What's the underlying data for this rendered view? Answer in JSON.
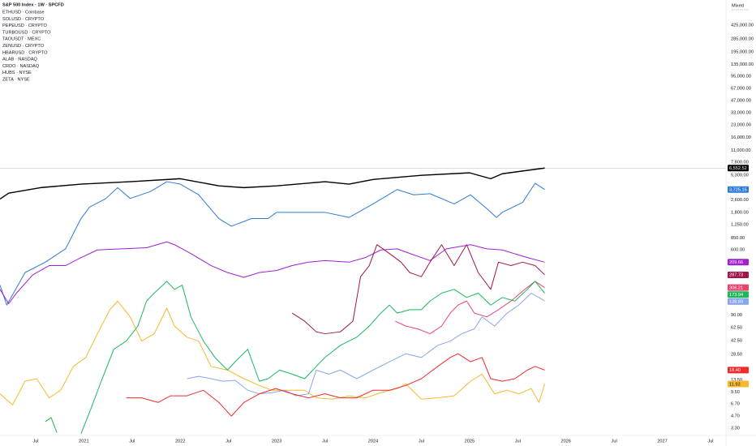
{
  "chart_data": {
    "type": "line",
    "title": "S&P 500 Index · 1W · SPCFD",
    "currency_label": "Mixed",
    "log_scale": true,
    "grid": false,
    "xlim": [
      2020.13,
      2027.66
    ],
    "ylim": [
      2.67,
      884600
    ],
    "xticks": [
      {
        "value": 2020.5,
        "label": "Jul"
      },
      2021,
      {
        "value": 2021.5,
        "label": "Jul"
      },
      2022,
      {
        "value": 2022.5,
        "label": "Jul"
      },
      2023,
      {
        "value": 2023.5,
        "label": "Jul"
      },
      2024,
      {
        "value": 2024.5,
        "label": "Jul"
      },
      2025,
      {
        "value": 2025.5,
        "label": "Jul"
      },
      2026,
      {
        "value": 2026.5,
        "label": "Jul"
      },
      2027,
      {
        "value": 2027.5,
        "label": "Jul"
      }
    ],
    "yticks": [
      {
        "value": 425000,
        "label": "425,000.00"
      },
      {
        "value": 285000,
        "label": "285,000.00"
      },
      {
        "value": 195000,
        "label": "195,000.00"
      },
      {
        "value": 135000,
        "label": "135,000.00"
      },
      {
        "value": 95000,
        "label": "95,000.00"
      },
      {
        "value": 67000,
        "label": "67,000.00"
      },
      {
        "value": 47000,
        "label": "47,000.00"
      },
      {
        "value": 33000,
        "label": "33,000.00"
      },
      {
        "value": 23000,
        "label": "23,000.00"
      },
      {
        "value": 16000,
        "label": "16,000.00"
      },
      {
        "value": 11000,
        "label": "11,000.00"
      },
      {
        "value": 7800,
        "label": "7,800.00"
      },
      {
        "value": 5300,
        "label": "5,300.00"
      },
      {
        "value": 2600,
        "label": "2,600.00"
      },
      {
        "value": 1800,
        "label": "1,800.00"
      },
      {
        "value": 1250,
        "label": "1,250.00"
      },
      {
        "value": 850,
        "label": "850.00"
      },
      {
        "value": 600,
        "label": "600.00"
      },
      {
        "value": 90,
        "label": "90.00"
      },
      {
        "value": 62.5,
        "label": "62.50"
      },
      {
        "value": 42.5,
        "label": "42.50"
      },
      {
        "value": 28.5,
        "label": "28.50"
      },
      {
        "value": 13.5,
        "label": "13.50"
      },
      {
        "value": 9.5,
        "label": "9.50"
      },
      {
        "value": 6.7,
        "label": "6.70"
      },
      {
        "value": 4.7,
        "label": "4.70"
      },
      {
        "value": 3.3,
        "label": "3.30"
      }
    ],
    "main": {
      "color": "#000000",
      "badge": "6,552.52",
      "price_line_color": "#b8bcc6",
      "x": [
        2020.13,
        2020.22,
        2020.55,
        2020.97,
        2021.48,
        2022.0,
        2022.4,
        2022.66,
        2023.0,
        2023.5,
        2023.75,
        2024.0,
        2024.5,
        2025.0,
        2025.22,
        2025.34,
        2025.78
      ],
      "values": [
        2650,
        3150,
        3700,
        4100,
        4400,
        4800,
        3900,
        3700,
        3900,
        4400,
        4100,
        4700,
        5300,
        5700,
        4800,
        5550,
        6550
      ]
    },
    "series": [
      {
        "name": "ETHUSD · Coinbase",
        "color": "#2f7bd8",
        "badge": "3,725.15",
        "x": [
          2020.13,
          2020.2,
          2020.39,
          2020.6,
          2020.81,
          2020.97,
          2021.06,
          2021.23,
          2021.35,
          2021.48,
          2021.69,
          2021.86,
          2022.0,
          2022.19,
          2022.4,
          2022.53,
          2022.74,
          2022.91,
          2023.0,
          2023.16,
          2023.33,
          2023.5,
          2023.75,
          2024.0,
          2024.25,
          2024.42,
          2024.59,
          2024.84,
          2025.01,
          2025.18,
          2025.28,
          2025.34,
          2025.55,
          2025.68,
          2025.78
        ],
        "values": [
          215,
          120,
          310,
          420,
          620,
          1500,
          2100,
          2700,
          3700,
          2700,
          3300,
          4400,
          4100,
          3000,
          1500,
          1200,
          1500,
          1500,
          1800,
          1800,
          1800,
          1800,
          1550,
          2300,
          3500,
          3000,
          3100,
          2300,
          3000,
          2000,
          1550,
          1800,
          2400,
          4200,
          3500
        ]
      },
      {
        "name": "SOLUSD · CRYPTO",
        "color": "#a020d0",
        "badge": "209.66",
        "x": [
          2020.13,
          2020.22,
          2020.3,
          2020.47,
          2020.64,
          2020.81,
          2020.97,
          2021.14,
          2021.39,
          2021.65,
          2021.86,
          2021.94,
          2022.11,
          2022.32,
          2022.49,
          2022.66,
          2022.82,
          2023.0,
          2023.16,
          2023.33,
          2023.5,
          2023.75,
          2023.92,
          2024.08,
          2024.25,
          2024.42,
          2024.59,
          2024.76,
          2025.01,
          2025.18,
          2025.34,
          2025.6,
          2025.78
        ],
        "values": [
          190,
          125,
          170,
          290,
          380,
          380,
          480,
          600,
          620,
          640,
          760,
          700,
          540,
          380,
          310,
          270,
          310,
          330,
          380,
          420,
          440,
          420,
          480,
          600,
          620,
          520,
          440,
          620,
          700,
          620,
          600,
          480,
          420
        ]
      },
      {
        "name": "PEPEUSD · CRYPTO",
        "color": "#4caf50",
        "x": [],
        "values": []
      },
      {
        "name": "TURBOUSD · CRYPTO",
        "color": "#ff9800",
        "x": [],
        "values": []
      },
      {
        "name": "TAOUSDT · MEXC",
        "color": "#a3154a",
        "badge": "287.73",
        "x": [
          2023.16,
          2023.29,
          2023.41,
          2023.5,
          2023.66,
          2023.79,
          2023.87,
          2023.96,
          2024.04,
          2024.17,
          2024.29,
          2024.38,
          2024.5,
          2024.59,
          2024.71,
          2024.84,
          2024.97,
          2025.09,
          2025.22,
          2025.3,
          2025.43,
          2025.55,
          2025.68,
          2025.78
        ],
        "values": [
          95,
          75,
          55,
          52,
          55,
          75,
          275,
          380,
          700,
          540,
          420,
          310,
          275,
          420,
          700,
          380,
          700,
          310,
          190,
          420,
          380,
          420,
          380,
          290
        ]
      },
      {
        "name": "ZENUSD · CRYPTO",
        "color": "#22b14c",
        "x": [
          2020.6,
          2020.66,
          2020.72
        ],
        "values": [
          4,
          4.5,
          2.9
        ]
      },
      {
        "name": "HBARUSD · CRYPTO",
        "color": "#f5b82e",
        "badge": "11.93",
        "badge_text_color": "#131722",
        "x": [
          2020.13,
          2020.26,
          2020.39,
          2020.51,
          2020.64,
          2020.76,
          2020.89,
          2021.02,
          2021.14,
          2021.27,
          2021.35,
          2021.48,
          2021.6,
          2021.73,
          2021.86,
          2021.94,
          2022.07,
          2022.19,
          2022.32,
          2022.49,
          2022.66,
          2022.82,
          2022.95,
          2023.12,
          2023.29,
          2023.41,
          2023.58,
          2023.75,
          2023.92,
          2024.08,
          2024.25,
          2024.34,
          2024.5,
          2024.67,
          2024.84,
          2025.01,
          2025.13,
          2025.26,
          2025.39,
          2025.51,
          2025.64,
          2025.72,
          2025.78
        ],
        "values": [
          9,
          6.5,
          13,
          14,
          8,
          10,
          20,
          26,
          52,
          105,
          135,
          85,
          42,
          52,
          110,
          65,
          47,
          42,
          20,
          18,
          14,
          11.5,
          10,
          10,
          10,
          8,
          7.7,
          8.5,
          8,
          9.3,
          10.5,
          12,
          7.7,
          8,
          8.5,
          13,
          16,
          9,
          10,
          9,
          10.5,
          7,
          12
        ]
      },
      {
        "name": "ALAB · NASDAQ",
        "color": "#e8456e",
        "badge": "306.21",
        "x": [
          2024.23,
          2024.34,
          2024.46,
          2024.59,
          2024.71,
          2024.8,
          2024.88,
          2024.97,
          2025.05,
          2025.18,
          2025.3,
          2025.43,
          2025.55,
          2025.68,
          2025.78
        ],
        "values": [
          75,
          65,
          60,
          52,
          65,
          95,
          120,
          135,
          95,
          85,
          105,
          135,
          180,
          240,
          200
        ]
      },
      {
        "name": "CRDO · NASDAQ",
        "color": "#8aa5ec",
        "badge": "138.83",
        "x": [
          2022.07,
          2022.19,
          2022.32,
          2022.44,
          2022.57,
          2022.7,
          2022.82,
          2022.95,
          2023.08,
          2023.2,
          2023.33,
          2023.41,
          2023.54,
          2023.66,
          2023.83,
          2024.0,
          2024.17,
          2024.34,
          2024.5,
          2024.67,
          2024.8,
          2024.92,
          2025.05,
          2025.13,
          2025.26,
          2025.39,
          2025.51,
          2025.64,
          2025.72,
          2025.78
        ],
        "values": [
          14,
          15,
          14,
          13,
          13.3,
          10,
          9,
          9.3,
          10,
          8.5,
          9,
          18,
          16,
          18,
          14,
          18,
          23,
          29,
          26,
          37,
          42,
          52,
          60,
          85,
          65,
          95,
          120,
          170,
          150,
          135
        ]
      },
      {
        "name": "HUBS · NYSE",
        "color": "#1bb85a",
        "badge": "173.94",
        "x": [
          2020.97,
          2021.06,
          2021.18,
          2021.31,
          2021.44,
          2021.56,
          2021.65,
          2021.73,
          2021.86,
          2021.94,
          2022.02,
          2022.11,
          2022.24,
          2022.36,
          2022.49,
          2022.57,
          2022.7,
          2022.82,
          2022.91,
          2023.03,
          2023.16,
          2023.29,
          2023.41,
          2023.5,
          2023.66,
          2023.83,
          2023.96,
          2024.08,
          2024.17,
          2024.25,
          2024.38,
          2024.5,
          2024.59,
          2024.71,
          2024.84,
          2024.97,
          2025.09,
          2025.22,
          2025.34,
          2025.47,
          2025.6,
          2025.68,
          2025.78
        ],
        "values": [
          2.8,
          5.3,
          13,
          33,
          42,
          65,
          135,
          170,
          240,
          190,
          215,
          85,
          42,
          26,
          18,
          23,
          33,
          13,
          14,
          18,
          16,
          14,
          20,
          26,
          37,
          47,
          65,
          95,
          120,
          95,
          105,
          105,
          135,
          170,
          190,
          150,
          170,
          120,
          150,
          135,
          190,
          240,
          170
        ]
      },
      {
        "name": "ZETA · NYSE",
        "color": "#ef2b2b",
        "badge": "18.40",
        "x": [
          2021.44,
          2021.6,
          2021.77,
          2021.9,
          2022.07,
          2022.24,
          2022.4,
          2022.53,
          2022.66,
          2022.82,
          2022.99,
          2023.16,
          2023.33,
          2023.5,
          2023.66,
          2023.83,
          2024.0,
          2024.17,
          2024.34,
          2024.5,
          2024.67,
          2024.8,
          2024.88,
          2025.01,
          2025.13,
          2025.22,
          2025.34,
          2025.47,
          2025.6,
          2025.68,
          2025.78
        ],
        "values": [
          8,
          8,
          7,
          8.5,
          8.5,
          10,
          7,
          4.7,
          7,
          9,
          10.5,
          9,
          8,
          9,
          8,
          8,
          10,
          10,
          11.5,
          14,
          20,
          26,
          29,
          23,
          26,
          14,
          13,
          14,
          18,
          20,
          18
        ]
      }
    ]
  }
}
